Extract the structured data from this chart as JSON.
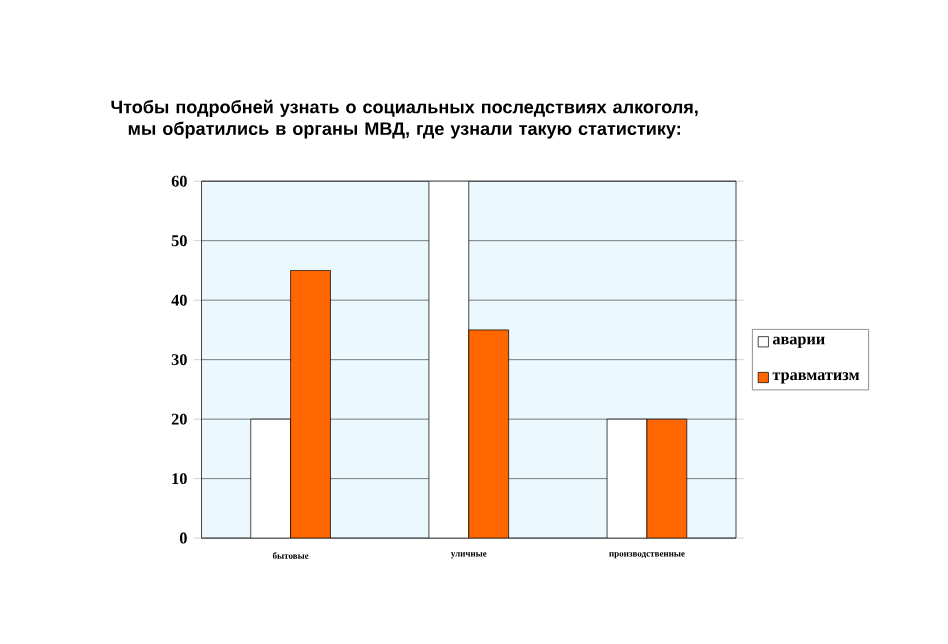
{
  "chart_data": {
    "type": "bar",
    "title": "Чтобы подробней узнать о социальных последствиях алкоголя, мы обратились в органы МВД, где узнали такую статистику:",
    "categories": [
      "бытовые",
      "уличные",
      "производственные"
    ],
    "series": [
      {
        "name": "аварии",
        "color": "#ffffff",
        "values": [
          20,
          60,
          20
        ]
      },
      {
        "name": "травматизм",
        "color": "#ff6600",
        "values": [
          45,
          35,
          20
        ]
      }
    ],
    "ylim": [
      0,
      60
    ],
    "yticks": [
      0,
      10,
      20,
      30,
      40,
      50,
      60
    ],
    "grid": "y",
    "legend": "right"
  }
}
